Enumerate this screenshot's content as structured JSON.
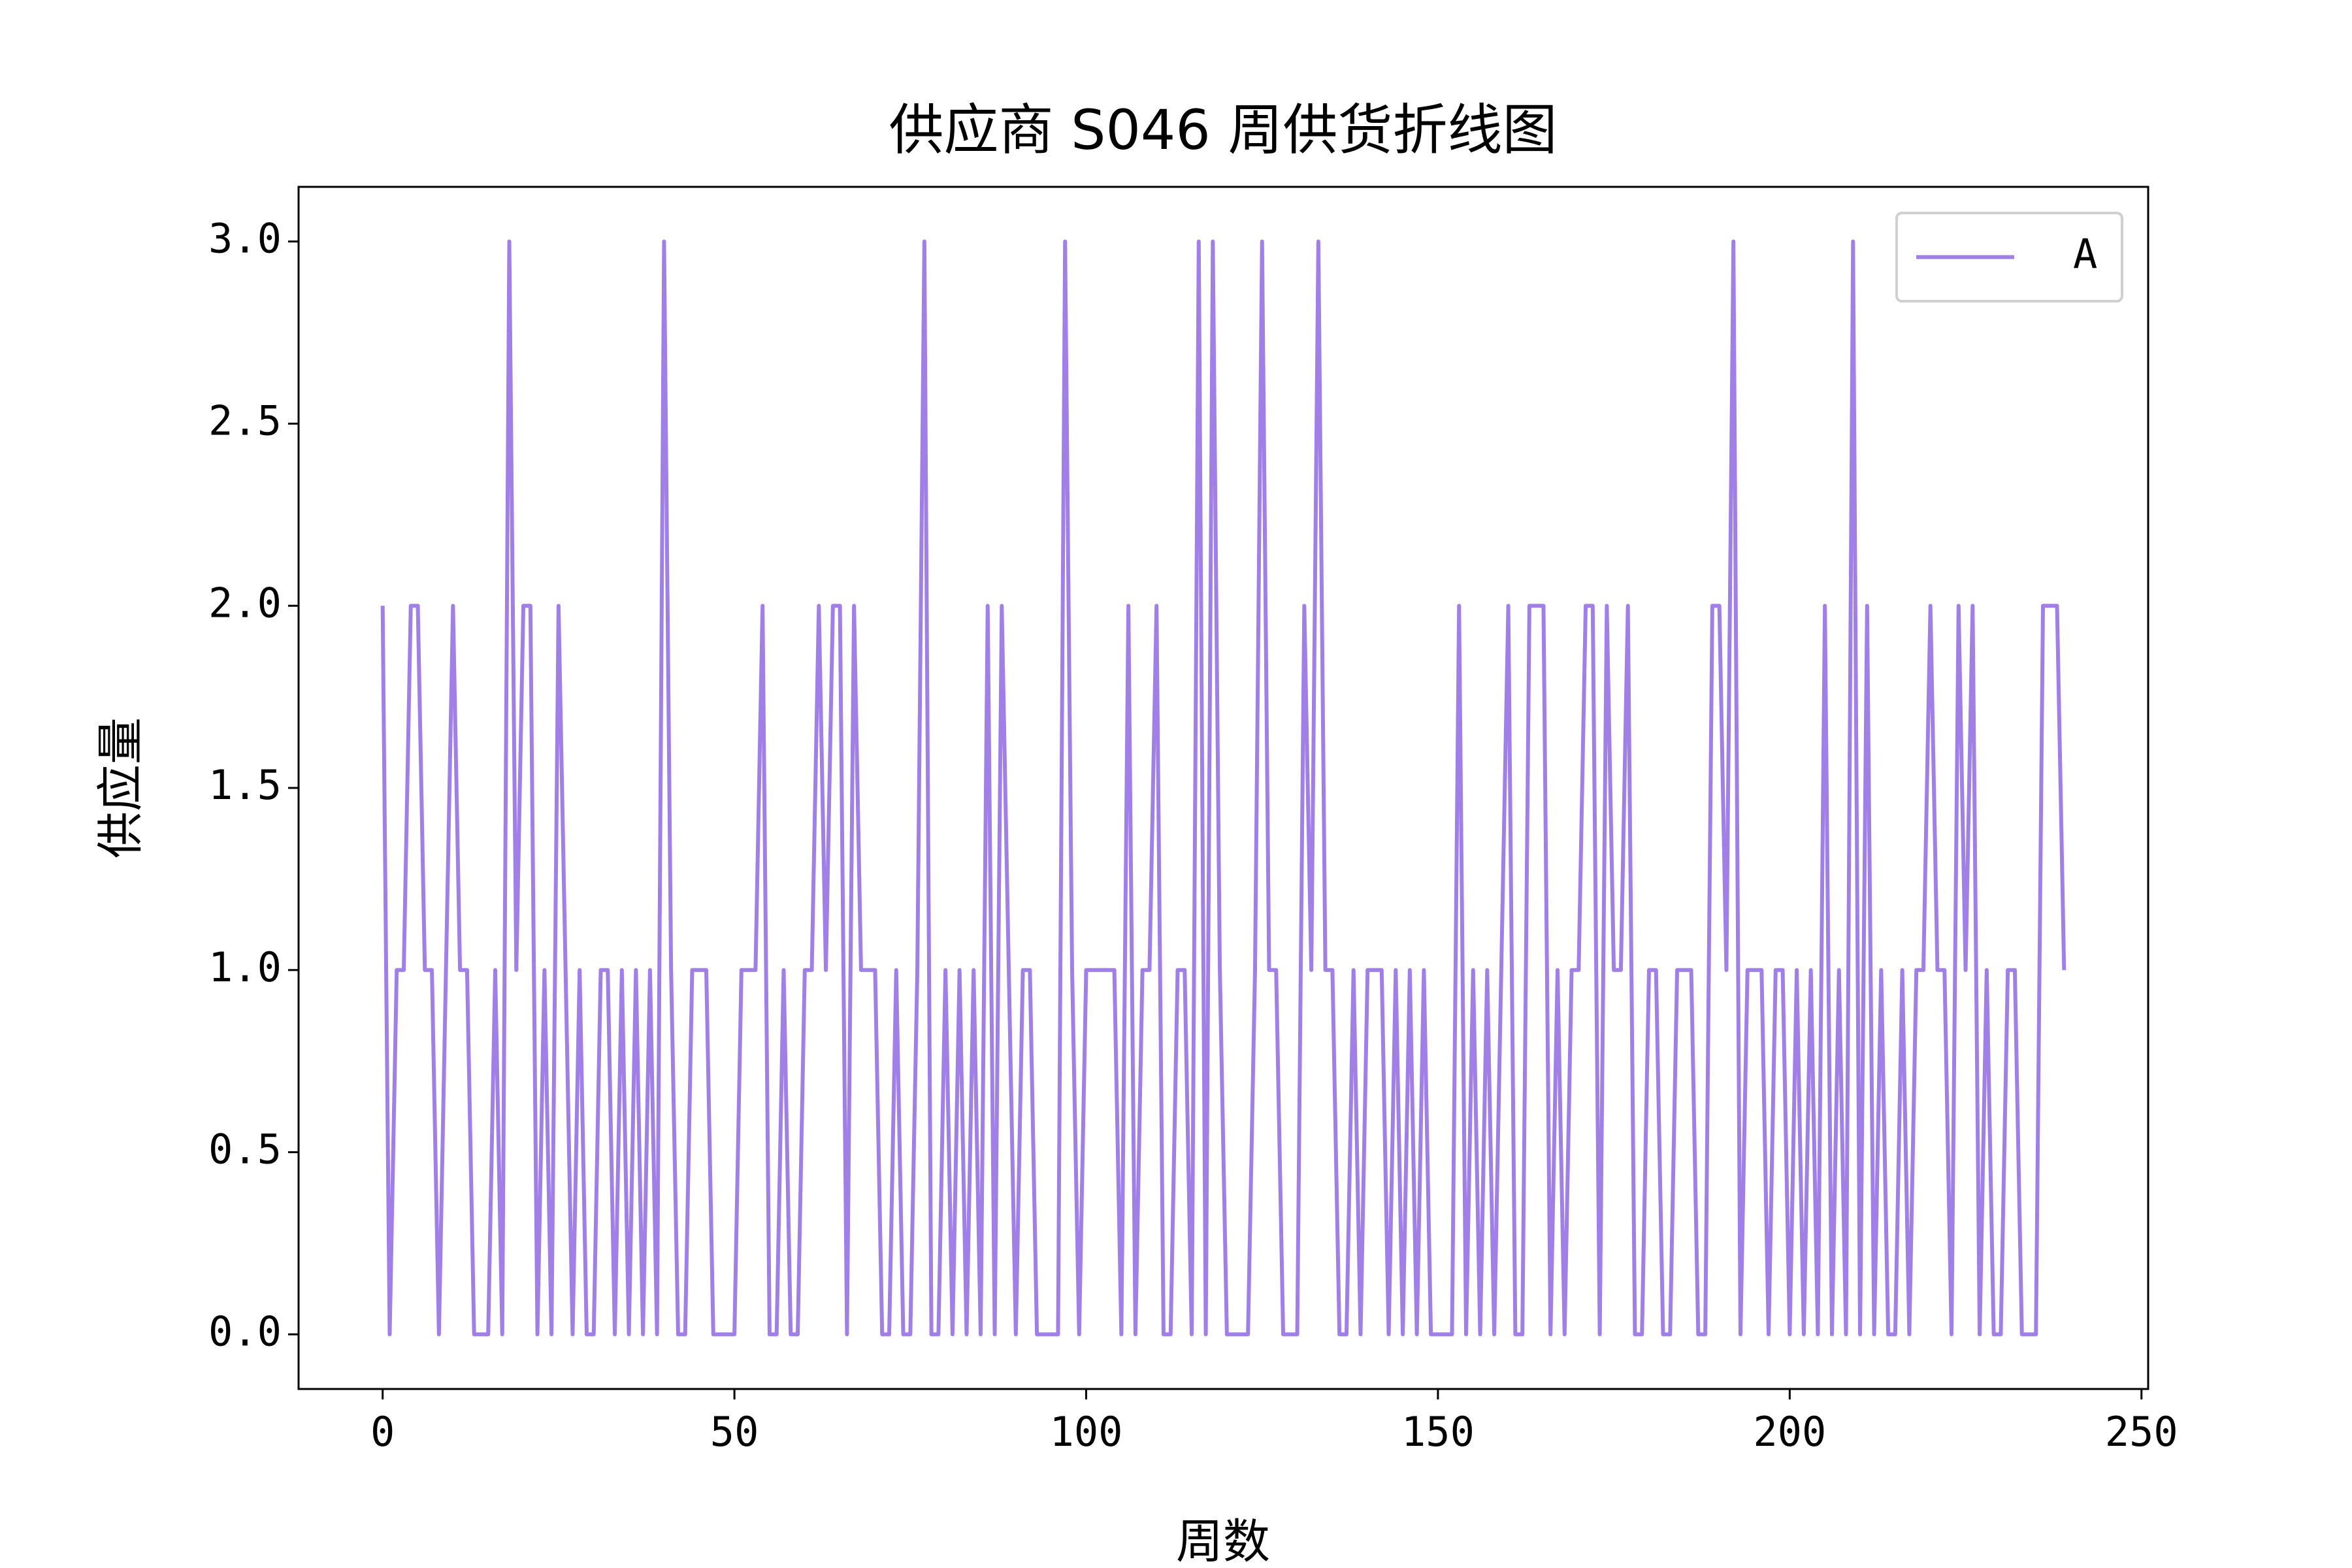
{
  "chart_data": {
    "type": "line",
    "title": "供应商 S046 周供货折线图",
    "x_label": "周数",
    "y_label": "供应量",
    "x": [
      0,
      1,
      2,
      3,
      4,
      5,
      6,
      7,
      8,
      9,
      10,
      11,
      12,
      13,
      14,
      15,
      16,
      17,
      18,
      19,
      20,
      21,
      22,
      23,
      24,
      25,
      26,
      27,
      28,
      29,
      30,
      31,
      32,
      33,
      34,
      35,
      36,
      37,
      38,
      39,
      40,
      41,
      42,
      43,
      44,
      45,
      46,
      47,
      48,
      49,
      50,
      51,
      52,
      53,
      54,
      55,
      56,
      57,
      58,
      59,
      60,
      61,
      62,
      63,
      64,
      65,
      66,
      67,
      68,
      69,
      70,
      71,
      72,
      73,
      74,
      75,
      76,
      77,
      78,
      79,
      80,
      81,
      82,
      83,
      84,
      85,
      86,
      87,
      88,
      89,
      90,
      91,
      92,
      93,
      94,
      95,
      96,
      97,
      98,
      99,
      100,
      101,
      102,
      103,
      104,
      105,
      106,
      107,
      108,
      109,
      110,
      111,
      112,
      113,
      114,
      115,
      116,
      117,
      118,
      119,
      120,
      121,
      122,
      123,
      124,
      125,
      126,
      127,
      128,
      129,
      130,
      131,
      132,
      133,
      134,
      135,
      136,
      137,
      138,
      139,
      140,
      141,
      142,
      143,
      144,
      145,
      146,
      147,
      148,
      149,
      150,
      151,
      152,
      153,
      154,
      155,
      156,
      157,
      158,
      159,
      160,
      161,
      162,
      163,
      164,
      165,
      166,
      167,
      168,
      169,
      170,
      171,
      172,
      173,
      174,
      175,
      176,
      177,
      178,
      179,
      180,
      181,
      182,
      183,
      184,
      185,
      186,
      187,
      188,
      189,
      190,
      191,
      192,
      193,
      194,
      195,
      196,
      197,
      198,
      199,
      200,
      201,
      202,
      203,
      204,
      205,
      206,
      207,
      208,
      209,
      210,
      211,
      212,
      213,
      214,
      215,
      216,
      217,
      218,
      219,
      220,
      221,
      222,
      223,
      224,
      225,
      226,
      227,
      228,
      229,
      230,
      231,
      232,
      233,
      234,
      235,
      236,
      237,
      238,
      239
    ],
    "series": [
      {
        "name": "A",
        "color": "#a080e6",
        "values": [
          2,
          0,
          1,
          1,
          2,
          2,
          1,
          1,
          0,
          1,
          2,
          1,
          1,
          0,
          0,
          0,
          1,
          0,
          3,
          1,
          2,
          2,
          0,
          1,
          0,
          2,
          1,
          0,
          1,
          0,
          0,
          1,
          1,
          0,
          1,
          0,
          1,
          0,
          1,
          0,
          3,
          1,
          0,
          0,
          1,
          1,
          1,
          0,
          0,
          0,
          0,
          1,
          1,
          1,
          2,
          0,
          0,
          1,
          0,
          0,
          1,
          1,
          2,
          1,
          2,
          2,
          0,
          2,
          1,
          1,
          1,
          0,
          0,
          1,
          0,
          0,
          1,
          3,
          0,
          0,
          1,
          0,
          1,
          0,
          1,
          0,
          2,
          0,
          2,
          1,
          0,
          1,
          1,
          0,
          0,
          0,
          0,
          3,
          1,
          0,
          1,
          1,
          1,
          1,
          1,
          0,
          2,
          0,
          1,
          1,
          2,
          0,
          0,
          1,
          1,
          0,
          3,
          0,
          3,
          1,
          0,
          0,
          0,
          0,
          1,
          3,
          1,
          1,
          0,
          0,
          0,
          2,
          1,
          3,
          1,
          1,
          0,
          0,
          1,
          0,
          1,
          1,
          1,
          0,
          1,
          0,
          1,
          0,
          1,
          0,
          0,
          0,
          0,
          2,
          0,
          1,
          0,
          1,
          0,
          1,
          2,
          0,
          0,
          2,
          2,
          2,
          0,
          1,
          0,
          1,
          1,
          2,
          2,
          0,
          2,
          1,
          1,
          2,
          0,
          0,
          1,
          1,
          0,
          0,
          1,
          1,
          1,
          0,
          0,
          2,
          2,
          1,
          3,
          0,
          1,
          1,
          1,
          0,
          1,
          1,
          0,
          1,
          0,
          1,
          0,
          2,
          0,
          1,
          0,
          3,
          0,
          2,
          0,
          1,
          0,
          0,
          1,
          0,
          1,
          1,
          2,
          1,
          1,
          0,
          2,
          1,
          2,
          0,
          1,
          0,
          0,
          1,
          1,
          0,
          0,
          0,
          2,
          2,
          2,
          1
        ]
      }
    ],
    "xlim": [
      -11.95,
      250.95
    ],
    "xticks": [
      0,
      50,
      100,
      150,
      200,
      250
    ],
    "ylim": [
      -0.15,
      3.15
    ],
    "yticks": [
      {
        "value": 0,
        "label": "0.0"
      },
      {
        "value": 0.5,
        "label": "0.5"
      },
      {
        "value": 1,
        "label": "1.0"
      },
      {
        "value": 1.5,
        "label": "1.5"
      },
      {
        "value": 2,
        "label": "2.0"
      },
      {
        "value": 2.5,
        "label": "2.5"
      },
      {
        "value": 3,
        "label": "3.0"
      }
    ],
    "legend": "upper right"
  }
}
